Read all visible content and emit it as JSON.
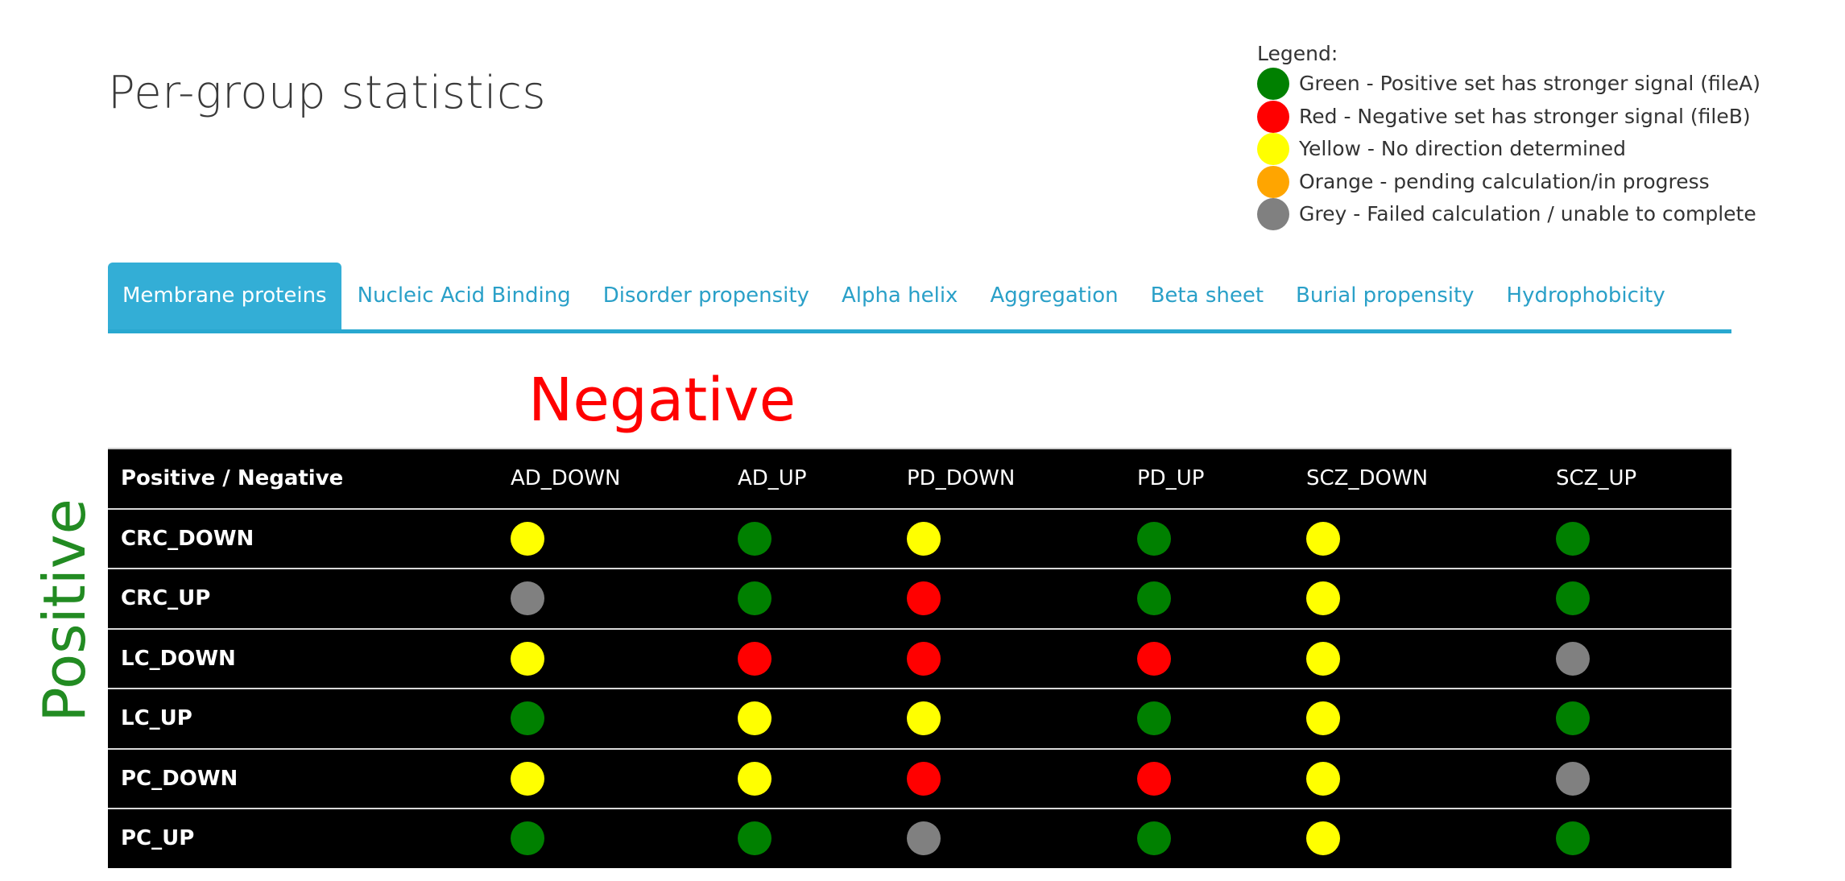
{
  "header": {
    "title": "Per-group statistics"
  },
  "legend": {
    "title": "Legend:",
    "items": [
      {
        "label": "Green - Positive set has stronger signal (fileA)",
        "color": "#008000"
      },
      {
        "label": "Red - Negative set has stronger signal (fileB)",
        "color": "#ff0000"
      },
      {
        "label": "Yellow - No direction determined",
        "color": "#ffff00"
      },
      {
        "label": "Orange - pending calculation/in progress",
        "color": "#ffa500"
      },
      {
        "label": "Grey - Failed calculation / unable to complete",
        "color": "#808080"
      }
    ]
  },
  "tabs": [
    {
      "label": "Membrane proteins",
      "active": true
    },
    {
      "label": "Nucleic Acid Binding",
      "active": false
    },
    {
      "label": "Disorder propensity",
      "active": false
    },
    {
      "label": "Alpha helix",
      "active": false
    },
    {
      "label": "Aggregation",
      "active": false
    },
    {
      "label": "Beta sheet",
      "active": false
    },
    {
      "label": "Burial propensity",
      "active": false
    },
    {
      "label": "Hydrophobicity",
      "active": false
    }
  ],
  "axis_labels": {
    "negative": "Negative",
    "positive": "Positive"
  },
  "status_colors": {
    "green": "#008000",
    "red": "#ff0000",
    "yellow": "#ffff00",
    "orange": "#ffa500",
    "grey": "#808080"
  },
  "table": {
    "corner": "Positive / Negative",
    "columns": [
      "AD_DOWN",
      "AD_UP",
      "PD_DOWN",
      "PD_UP",
      "SCZ_DOWN",
      "SCZ_UP"
    ],
    "rows": [
      {
        "label": "CRC_DOWN",
        "cells": [
          "yellow",
          "green",
          "yellow",
          "green",
          "yellow",
          "green"
        ]
      },
      {
        "label": "CRC_UP",
        "cells": [
          "grey",
          "green",
          "red",
          "green",
          "yellow",
          "green"
        ]
      },
      {
        "label": "LC_DOWN",
        "cells": [
          "yellow",
          "red",
          "red",
          "red",
          "yellow",
          "grey"
        ]
      },
      {
        "label": "LC_UP",
        "cells": [
          "green",
          "yellow",
          "yellow",
          "green",
          "yellow",
          "green"
        ]
      },
      {
        "label": "PC_DOWN",
        "cells": [
          "yellow",
          "yellow",
          "red",
          "red",
          "yellow",
          "grey"
        ]
      },
      {
        "label": "PC_UP",
        "cells": [
          "green",
          "green",
          "grey",
          "green",
          "yellow",
          "green"
        ]
      }
    ]
  }
}
